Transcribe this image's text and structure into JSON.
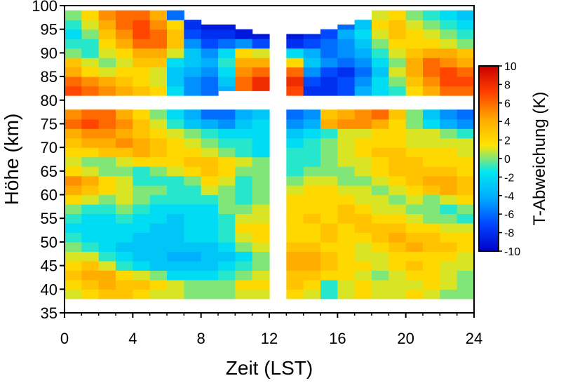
{
  "chart_data": {
    "type": "heatmap",
    "xlabel": "Zeit (LST)",
    "ylabel": "Höhe (km)",
    "colorbar_label": "T-Abweichung (K)",
    "xlim": [
      0,
      24
    ],
    "ylim": [
      35,
      100
    ],
    "x_ticks": [
      0,
      4,
      8,
      12,
      16,
      20,
      24
    ],
    "y_ticks": [
      35,
      40,
      45,
      50,
      55,
      60,
      65,
      70,
      75,
      80,
      85,
      90,
      95,
      100
    ],
    "colorbar_ticks": [
      10,
      8,
      6,
      4,
      2,
      0,
      -2,
      -4,
      -6,
      -8,
      -10
    ],
    "color_range": [
      -10,
      10
    ],
    "colormap": [
      "#0000c8",
      "#0044ff",
      "#00aaff",
      "#00e8f0",
      "#ffe400",
      "#ffa800",
      "#ff4000",
      "#c80000"
    ],
    "cell_width_h": 1,
    "cell_height_km": 2,
    "cell_x_start": [
      0,
      1,
      2,
      3,
      4,
      5,
      6,
      7,
      8,
      9,
      10,
      11,
      13,
      14,
      15,
      16,
      17,
      18,
      19,
      20,
      21,
      22,
      23
    ],
    "gaps": [
      {
        "x": [
          12,
          13
        ],
        "y": [
          38,
          78
        ]
      },
      {
        "x": [
          0,
          24
        ],
        "y": [
          78,
          81
        ]
      }
    ],
    "upper_layer": {
      "y_min": 81,
      "y_top": [
        100,
        100,
        100,
        100,
        100,
        100,
        99,
        97,
        96,
        96,
        95,
        94,
        94,
        94,
        95,
        96,
        97,
        100,
        100,
        100,
        100,
        100,
        100
      ],
      "y_bottom": [
        81,
        81,
        81,
        81,
        81,
        81,
        81,
        81,
        81,
        82,
        82,
        82,
        81,
        81,
        81,
        81,
        81,
        81,
        81,
        81,
        81,
        81,
        81
      ],
      "y_centers": [
        82,
        84,
        86,
        88,
        90,
        92,
        94,
        96,
        98
      ],
      "values": [
        [
          7,
          6,
          5,
          4,
          3,
          2,
          -2,
          -5,
          -6,
          -4,
          6,
          8,
          7,
          -8,
          -8,
          -7,
          -4,
          -2,
          -1,
          2,
          4,
          6,
          6
        ],
        [
          6,
          5,
          4,
          3,
          2,
          1,
          -3,
          -5,
          -6,
          -3,
          6,
          8,
          8,
          -7,
          -8,
          -7,
          -5,
          -2,
          0,
          3,
          5,
          7,
          7
        ],
        [
          4,
          2,
          1,
          2,
          2,
          1,
          -3,
          -4,
          -5,
          -2,
          5,
          6,
          6,
          -5,
          -7,
          -8,
          -6,
          -3,
          1,
          4,
          6,
          7,
          6
        ],
        [
          3,
          1,
          0,
          1,
          3,
          3,
          -2,
          -3,
          -4,
          -1,
          4,
          4,
          2,
          -3,
          -5,
          -6,
          -5,
          -2,
          0,
          4,
          6,
          5,
          4
        ],
        [
          0,
          -1,
          1,
          2,
          4,
          4,
          1,
          -3,
          -5,
          -2,
          2,
          1,
          -2,
          -4,
          -6,
          -5,
          -4,
          -1,
          1,
          3,
          4,
          4,
          3
        ],
        [
          -1,
          -1,
          2,
          4,
          6,
          6,
          3,
          -5,
          -7,
          -6,
          -5,
          -7,
          -8,
          -7,
          -6,
          -5,
          -3,
          0,
          2,
          2,
          2,
          1,
          0
        ],
        [
          -2,
          0,
          3,
          5,
          7,
          6,
          3,
          -7,
          -8,
          -8,
          -9,
          -9,
          -9,
          -8,
          -7,
          -4,
          -2,
          1,
          3,
          2,
          1,
          0,
          -1
        ],
        [
          -1,
          1,
          4,
          6,
          7,
          5,
          2,
          -8,
          -9,
          -9,
          -9,
          -9,
          -9,
          -9,
          -8,
          -6,
          -3,
          2,
          3,
          1,
          0,
          -1,
          -2
        ],
        [
          0,
          2,
          5,
          6,
          6,
          4,
          -6,
          -9,
          -9,
          -9,
          -9,
          -9,
          -9,
          -9,
          -9,
          -7,
          -4,
          1,
          2,
          0,
          -1,
          -2,
          -3
        ]
      ]
    },
    "lower_layer": {
      "y_min": 38,
      "y_max": 78,
      "y_centers": [
        39,
        41,
        43,
        45,
        47,
        49,
        51,
        53,
        55,
        57,
        59,
        61,
        63,
        65,
        67,
        69,
        71,
        73,
        75,
        77
      ],
      "values": [
        [
          1,
          2,
          3,
          3,
          2,
          1,
          1,
          0,
          0,
          0,
          1,
          1,
          2,
          1,
          -1,
          1,
          2,
          1,
          1,
          2,
          1,
          0,
          0
        ],
        [
          2,
          3,
          4,
          3,
          3,
          2,
          1,
          0,
          0,
          0,
          2,
          2,
          3,
          2,
          -1,
          1,
          2,
          1,
          1,
          1,
          2,
          1,
          0
        ],
        [
          3,
          4,
          4,
          2,
          1,
          0,
          -2,
          -2,
          -2,
          -1,
          0,
          1,
          3,
          3,
          2,
          2,
          1,
          0,
          1,
          2,
          2,
          1,
          0
        ],
        [
          2,
          3,
          1,
          -1,
          -2,
          -3,
          -3,
          -3,
          -3,
          -2,
          -1,
          0,
          4,
          4,
          3,
          2,
          2,
          1,
          2,
          3,
          2,
          1,
          1
        ],
        [
          1,
          1,
          -1,
          -2,
          -3,
          -3,
          -4,
          -4,
          -3,
          -3,
          -2,
          0,
          4,
          4,
          3,
          2,
          1,
          1,
          2,
          2,
          2,
          2,
          1
        ],
        [
          0,
          -1,
          -2,
          -3,
          -3,
          -3,
          -3,
          -3,
          -3,
          -2,
          0,
          1,
          3,
          3,
          2,
          2,
          1,
          2,
          3,
          4,
          3,
          3,
          2
        ],
        [
          -1,
          -2,
          -2,
          -2,
          -3,
          -3,
          -3,
          -2,
          -2,
          -1,
          1,
          2,
          2,
          2,
          3,
          2,
          2,
          3,
          4,
          3,
          3,
          2,
          2
        ],
        [
          -2,
          -2,
          -2,
          -2,
          -2,
          -3,
          -3,
          -2,
          -2,
          -1,
          2,
          2,
          2,
          2,
          3,
          2,
          3,
          3,
          3,
          2,
          2,
          1,
          1
        ],
        [
          -1,
          -2,
          -2,
          -1,
          -2,
          -2,
          -3,
          -2,
          -2,
          -1,
          1,
          1,
          2,
          3,
          2,
          3,
          3,
          2,
          2,
          1,
          0,
          0,
          -1
        ],
        [
          0,
          -1,
          -1,
          0,
          -1,
          -2,
          -2,
          -2,
          -2,
          0,
          0,
          1,
          2,
          2,
          2,
          3,
          2,
          1,
          1,
          0,
          0,
          -1,
          0
        ],
        [
          2,
          1,
          0,
          1,
          0,
          -1,
          -1,
          -1,
          -1,
          0,
          -1,
          0,
          2,
          2,
          2,
          2,
          1,
          1,
          0,
          1,
          0,
          1,
          2
        ],
        [
          4,
          3,
          2,
          1,
          0,
          0,
          -1,
          -1,
          1,
          0,
          -1,
          0,
          1,
          2,
          2,
          1,
          1,
          0,
          1,
          2,
          3,
          4,
          3
        ],
        [
          5,
          4,
          2,
          1,
          -1,
          -1,
          -1,
          0,
          2,
          1,
          -1,
          0,
          0,
          1,
          1,
          0,
          0,
          1,
          2,
          3,
          4,
          4,
          3
        ],
        [
          2,
          1,
          0,
          0,
          -1,
          0,
          1,
          2,
          3,
          2,
          0,
          0,
          -1,
          0,
          0,
          0,
          1,
          2,
          3,
          3,
          3,
          3,
          2
        ],
        [
          1,
          0,
          0,
          1,
          2,
          2,
          2,
          3,
          3,
          2,
          1,
          0,
          -1,
          -1,
          0,
          1,
          1,
          2,
          3,
          3,
          2,
          2,
          2
        ],
        [
          2,
          2,
          3,
          3,
          4,
          3,
          2,
          2,
          1,
          0,
          -1,
          -2,
          -1,
          -1,
          0,
          1,
          2,
          3,
          3,
          2,
          2,
          2,
          1
        ],
        [
          3,
          4,
          4,
          5,
          4,
          3,
          2,
          1,
          0,
          -1,
          -1,
          -2,
          -2,
          -1,
          0,
          1,
          2,
          2,
          2,
          1,
          1,
          1,
          1
        ],
        [
          4,
          5,
          5,
          4,
          3,
          2,
          1,
          0,
          -1,
          -2,
          -2,
          -2,
          -3,
          -2,
          -1,
          1,
          1,
          2,
          2,
          1,
          1,
          0,
          -1
        ],
        [
          6,
          7,
          6,
          5,
          3,
          1,
          -1,
          -3,
          -4,
          -5,
          -3,
          -2,
          -5,
          -4,
          4,
          5,
          5,
          4,
          2,
          0,
          -2,
          -4,
          -5
        ],
        [
          5,
          6,
          6,
          4,
          2,
          0,
          -2,
          -4,
          -6,
          -6,
          -4,
          -3,
          -6,
          -5,
          3,
          4,
          5,
          6,
          3,
          0,
          -3,
          -5,
          -6
        ]
      ]
    }
  }
}
